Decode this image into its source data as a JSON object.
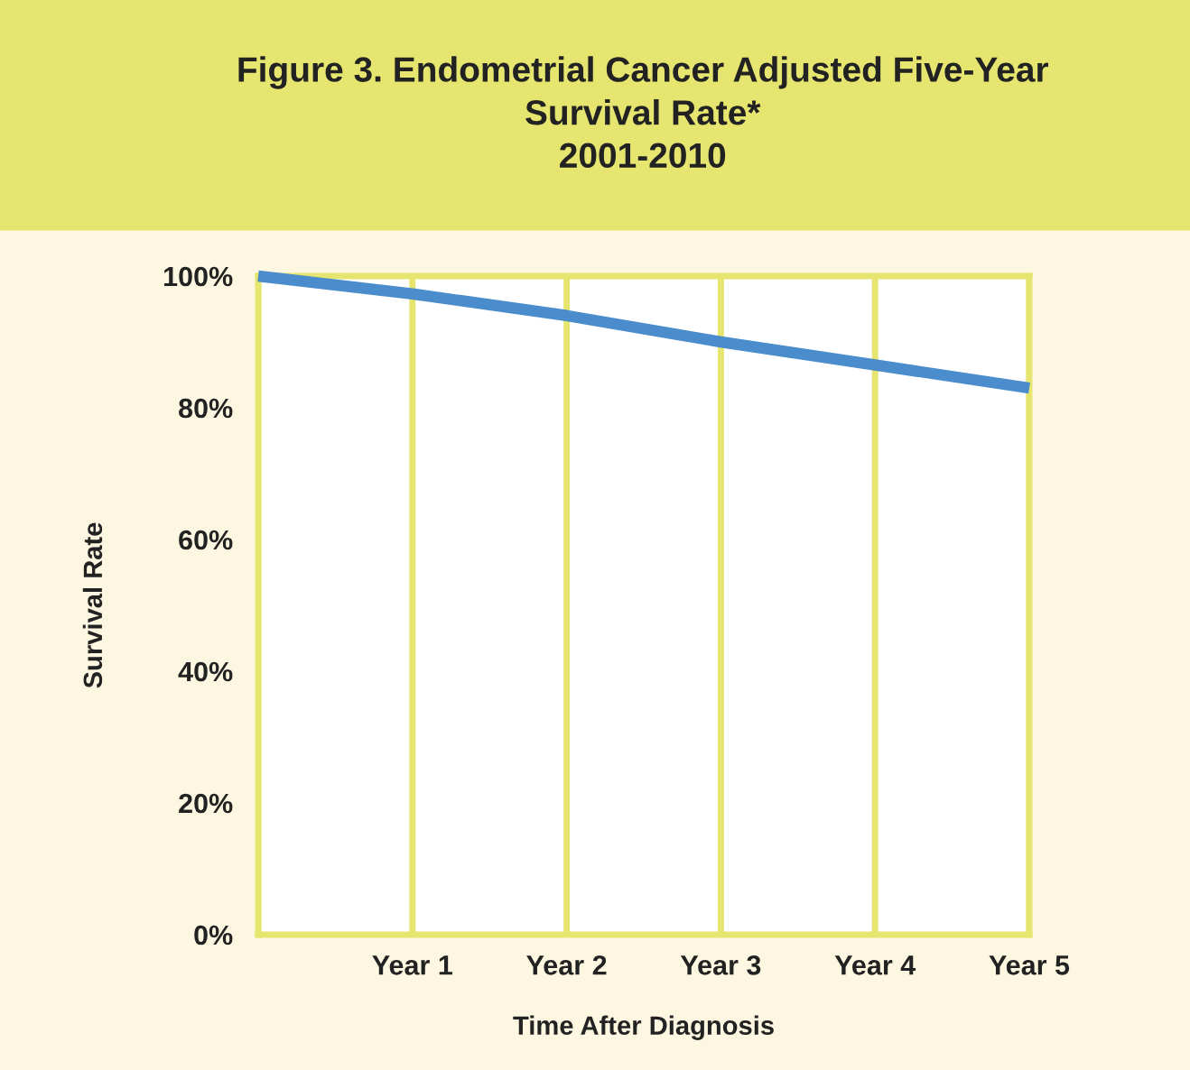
{
  "chart_data": {
    "type": "line",
    "title": "Figure 3. Endometrial Cancer Adjusted Five-Year\nSurvival Rate*\n2001-2010",
    "xlabel": "Time After Diagnosis",
    "ylabel": "Survival Rate",
    "categories": [
      null,
      "Year 1",
      "Year 2",
      "Year 3",
      "Year 4",
      "Year 5"
    ],
    "series": [
      {
        "color": "#4a8ccc",
        "values": [
          100,
          97.3,
          94,
          90,
          86.5,
          83
        ]
      }
    ],
    "ylim": [
      0,
      100
    ],
    "yticks": [
      {
        "value": 0,
        "label": "0%"
      },
      {
        "value": 20,
        "label": "20%"
      },
      {
        "value": 40,
        "label": "40%"
      },
      {
        "value": 60,
        "label": "60%"
      },
      {
        "value": 80,
        "label": "80%"
      },
      {
        "value": 100,
        "label": "100%"
      }
    ],
    "grid": "x",
    "legend": false,
    "marker": "none",
    "line_style": "solid"
  }
}
